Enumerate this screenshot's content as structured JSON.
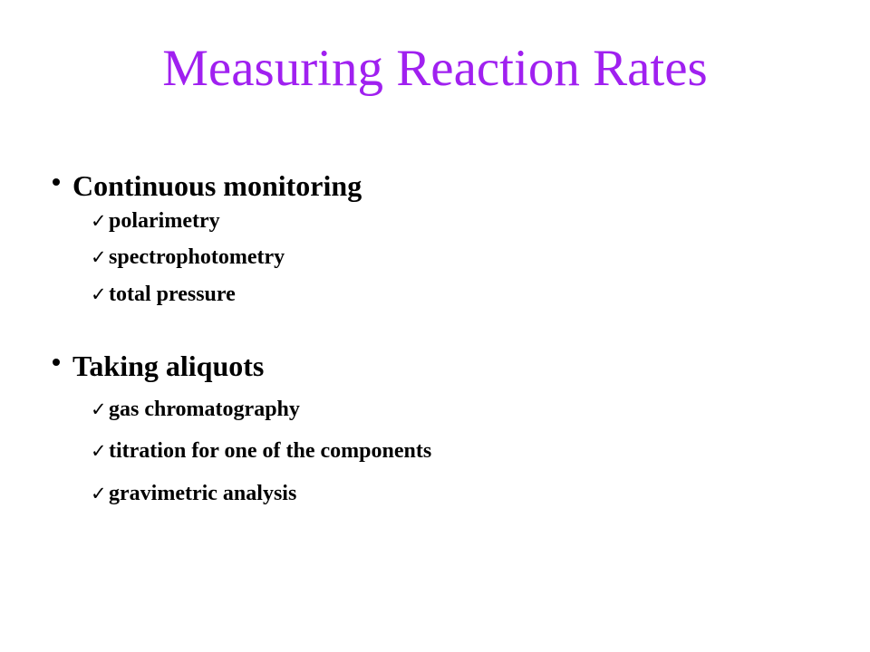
{
  "slide": {
    "title": "Measuring Reaction Rates",
    "sections": [
      {
        "heading": "Continuous monitoring",
        "items": [
          "polarimetry",
          "spectrophotometry",
          "total pressure"
        ]
      },
      {
        "heading": "Taking aliquots",
        "items": [
          "gas chromatography",
          "titration for one of the components",
          "gravimetric analysis"
        ]
      }
    ],
    "bullet_icon": "bullet-dot",
    "sub_bullet_icon": "check-mark",
    "colors": {
      "title": "#a020f0",
      "text": "#000000",
      "background": "#ffffff"
    }
  }
}
